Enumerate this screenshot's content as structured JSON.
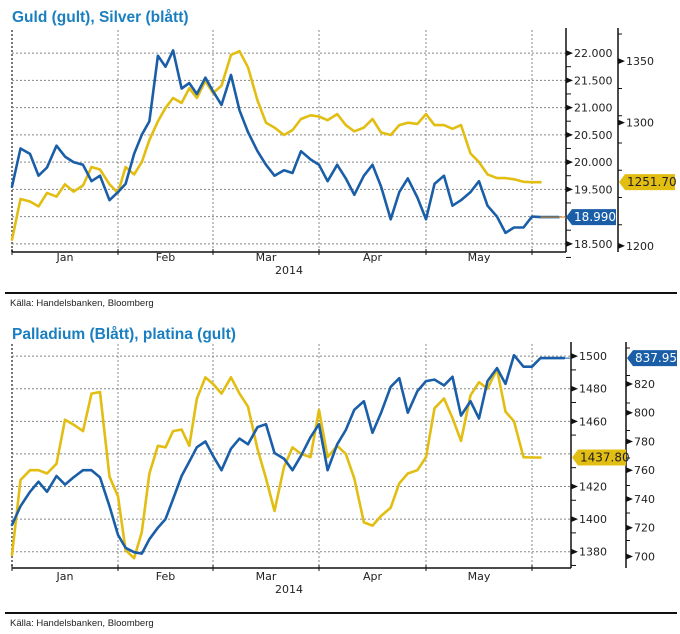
{
  "charts": [
    {
      "title": "Guld (gult), Silver (blått)",
      "source": "Källa: Handelsbanken, Bloomberg",
      "year_label": "2014",
      "months": [
        "Jan",
        "Feb",
        "Mar",
        "Apr",
        "May"
      ],
      "inner_axis_ticks": [
        "22.000",
        "21.500",
        "21.000",
        "20.500",
        "20.000",
        "19.500",
        "18.500"
      ],
      "outer_axis_ticks": [
        "1350",
        "1300",
        "1200"
      ],
      "last_value_labels": {
        "gold": "1251.70",
        "silver": "18.990"
      }
    },
    {
      "title": "Palladium (Blått), platina (gult)",
      "source": "Källa: Handelsbanken, Bloomberg",
      "year_label": "2014",
      "months": [
        "Jan",
        "Feb",
        "Mar",
        "Apr",
        "May"
      ],
      "inner_axis_ticks": [
        "1500",
        "1480",
        "1460",
        "1420",
        "1400",
        "1380"
      ],
      "outer_axis_ticks": [
        "820",
        "800",
        "780",
        "760",
        "740",
        "720",
        "700"
      ],
      "last_value_labels": {
        "palladium": "837.95",
        "platinum": "1437.80"
      }
    }
  ],
  "colors": {
    "blue": "#1a5ea8",
    "yellow": "#e2bd12",
    "title": "#1a7fc1",
    "label_yellow_bg": "#e2bd12",
    "label_blue_bg": "#1a5ea8",
    "grid": "#888888"
  },
  "chart_data": [
    {
      "type": "line",
      "title": "Guld (gult), Silver (blått)",
      "xlabel": "2014",
      "x_ticks": [
        "Jan",
        "Feb",
        "Mar",
        "Apr",
        "May"
      ],
      "x_range_months": [
        0,
        5.3
      ],
      "grid": true,
      "series": [
        {
          "name": "Silver (blått)",
          "axis": "inner-right",
          "ylim": [
            18.35,
            22.35
          ],
          "x": [
            0,
            0.08,
            0.17,
            0.25,
            0.33,
            0.42,
            0.5,
            0.58,
            0.67,
            0.75,
            0.83,
            0.92,
            1.0,
            1.08,
            1.17,
            1.25,
            1.33,
            1.42,
            1.5,
            1.58,
            1.67,
            1.75,
            1.83,
            1.92,
            2.0,
            2.08,
            2.17,
            2.25,
            2.33,
            2.42,
            2.5,
            2.58,
            2.67,
            2.75,
            2.83,
            2.92,
            3.0,
            3.08,
            3.17,
            3.25,
            3.33,
            3.42,
            3.5,
            3.58,
            3.67,
            3.75,
            3.83,
            3.92,
            4.0,
            4.08,
            4.17,
            4.25,
            4.33,
            4.42,
            4.5,
            4.58,
            4.67,
            4.75,
            4.83,
            4.92,
            5.0,
            5.08,
            5.17,
            5.25
          ],
          "values": [
            19.55,
            20.25,
            20.15,
            19.75,
            19.9,
            20.3,
            20.1,
            20.0,
            19.95,
            19.65,
            19.75,
            19.3,
            19.45,
            19.6,
            20.15,
            20.5,
            20.75,
            21.95,
            21.75,
            22.05,
            21.35,
            21.45,
            21.25,
            21.55,
            21.3,
            21.05,
            21.6,
            20.95,
            20.55,
            20.2,
            19.95,
            19.75,
            19.85,
            19.8,
            20.2,
            20.05,
            19.95,
            19.65,
            19.95,
            19.7,
            19.4,
            19.75,
            19.95,
            19.55,
            18.95,
            19.45,
            19.7,
            19.35,
            18.95,
            19.6,
            19.75,
            19.2,
            19.3,
            19.45,
            19.65,
            19.2,
            19.0,
            18.7,
            18.8,
            18.8,
            19.0,
            18.99,
            18.99,
            18.99
          ],
          "last_value": 18.99
        },
        {
          "name": "Guld (gult)",
          "axis": "outer-right",
          "ylim": [
            1195,
            1372
          ],
          "x": [
            0,
            0.08,
            0.17,
            0.25,
            0.33,
            0.42,
            0.5,
            0.58,
            0.67,
            0.75,
            0.83,
            0.92,
            1.0,
            1.08,
            1.17,
            1.25,
            1.33,
            1.42,
            1.5,
            1.58,
            1.67,
            1.75,
            1.83,
            1.92,
            2.0,
            2.08,
            2.17,
            2.25,
            2.33,
            2.42,
            2.5,
            2.58,
            2.67,
            2.75,
            2.83,
            2.92,
            3.0,
            3.08,
            3.17,
            3.25,
            3.33,
            3.42,
            3.5,
            3.58,
            3.67,
            3.75,
            3.83,
            3.92,
            4.0,
            4.08,
            4.17,
            4.25,
            4.33,
            4.42,
            4.5,
            4.58,
            4.67,
            4.75,
            4.83,
            4.92,
            5.0,
            5.08
          ],
          "values": [
            1205,
            1238,
            1236,
            1232,
            1243,
            1240,
            1250,
            1244,
            1249,
            1264,
            1262,
            1250,
            1243,
            1264,
            1258,
            1268,
            1286,
            1301,
            1312,
            1320,
            1316,
            1328,
            1320,
            1334,
            1324,
            1330,
            1355,
            1358,
            1345,
            1318,
            1300,
            1296,
            1290,
            1294,
            1303,
            1306,
            1305,
            1302,
            1307,
            1298,
            1293,
            1296,
            1303,
            1292,
            1290,
            1298,
            1300,
            1299,
            1307,
            1298,
            1298,
            1295,
            1298,
            1275,
            1268,
            1258,
            1255,
            1255,
            1254,
            1252,
            1251.7,
            1251.7
          ],
          "last_value": 1251.7
        }
      ]
    },
    {
      "type": "line",
      "title": "Palladium (Blått), platina (gult)",
      "xlabel": "2014",
      "x_ticks": [
        "Jan",
        "Feb",
        "Mar",
        "Apr",
        "May"
      ],
      "x_range_months": [
        0,
        5.3
      ],
      "grid": true,
      "series": [
        {
          "name": "Palladium (Blått)",
          "axis": "outer-right",
          "ylim": [
            692,
            845
          ],
          "x": [
            0,
            0.08,
            0.17,
            0.25,
            0.33,
            0.42,
            0.5,
            0.58,
            0.67,
            0.75,
            0.83,
            0.92,
            1.0,
            1.08,
            1.17,
            1.25,
            1.33,
            1.42,
            1.5,
            1.58,
            1.67,
            1.75,
            1.83,
            1.92,
            2.0,
            2.08,
            2.17,
            2.25,
            2.33,
            2.42,
            2.5,
            2.58,
            2.67,
            2.75,
            2.83,
            2.92,
            3.0,
            3.08,
            3.17,
            3.25,
            3.33,
            3.42,
            3.5,
            3.58,
            3.67,
            3.75,
            3.83,
            3.92,
            4.0,
            4.08,
            4.17,
            4.25,
            4.33,
            4.42,
            4.5,
            4.58,
            4.67,
            4.75,
            4.83,
            4.92,
            5.0,
            5.08,
            5.17,
            5.3
          ],
          "values": [
            722,
            735,
            745,
            752,
            745,
            756,
            750,
            755,
            760,
            760,
            755,
            735,
            715,
            706,
            703,
            702,
            712,
            720,
            726,
            740,
            756,
            766,
            776,
            780,
            770,
            760,
            775,
            782,
            778,
            790,
            792,
            772,
            768,
            760,
            770,
            783,
            792,
            760,
            778,
            788,
            802,
            808,
            786,
            800,
            818,
            824,
            800,
            815,
            822,
            823,
            819,
            825,
            798,
            808,
            796,
            822,
            831,
            820,
            840,
            832,
            832,
            838,
            838,
            837.95
          ],
          "last_value": 837.95
        },
        {
          "name": "platina (gult)",
          "axis": "inner-right",
          "ylim": [
            1370,
            1505
          ],
          "x": [
            0,
            0.08,
            0.17,
            0.25,
            0.33,
            0.42,
            0.5,
            0.58,
            0.67,
            0.75,
            0.83,
            0.92,
            1.0,
            1.08,
            1.17,
            1.25,
            1.33,
            1.42,
            1.5,
            1.58,
            1.67,
            1.75,
            1.83,
            1.92,
            2.0,
            2.08,
            2.17,
            2.25,
            2.33,
            2.42,
            2.5,
            2.58,
            2.67,
            2.75,
            2.83,
            2.92,
            3.0,
            3.08,
            3.17,
            3.25,
            3.33,
            3.42,
            3.5,
            3.58,
            3.67,
            3.75,
            3.83,
            3.92,
            4.0,
            4.08,
            4.17,
            4.25,
            4.33,
            4.42,
            4.5,
            4.58,
            4.67,
            4.75,
            4.83,
            4.92,
            5.0,
            5.08
          ],
          "values": [
            1378,
            1424,
            1430,
            1430,
            1428,
            1434,
            1461,
            1458,
            1454,
            1477,
            1478,
            1426,
            1414,
            1381,
            1376,
            1392,
            1428,
            1445,
            1444,
            1454,
            1455,
            1445,
            1474,
            1487,
            1483,
            1477,
            1487,
            1477,
            1469,
            1443,
            1425,
            1405,
            1432,
            1444,
            1440,
            1438,
            1467,
            1438,
            1445,
            1440,
            1425,
            1398,
            1396,
            1402,
            1407,
            1422,
            1428,
            1430,
            1438,
            1468,
            1474,
            1462,
            1448,
            1476,
            1484,
            1480,
            1492,
            1466,
            1460,
            1438,
            1437.8,
            1437.8
          ],
          "last_value": 1437.8
        }
      ]
    }
  ]
}
